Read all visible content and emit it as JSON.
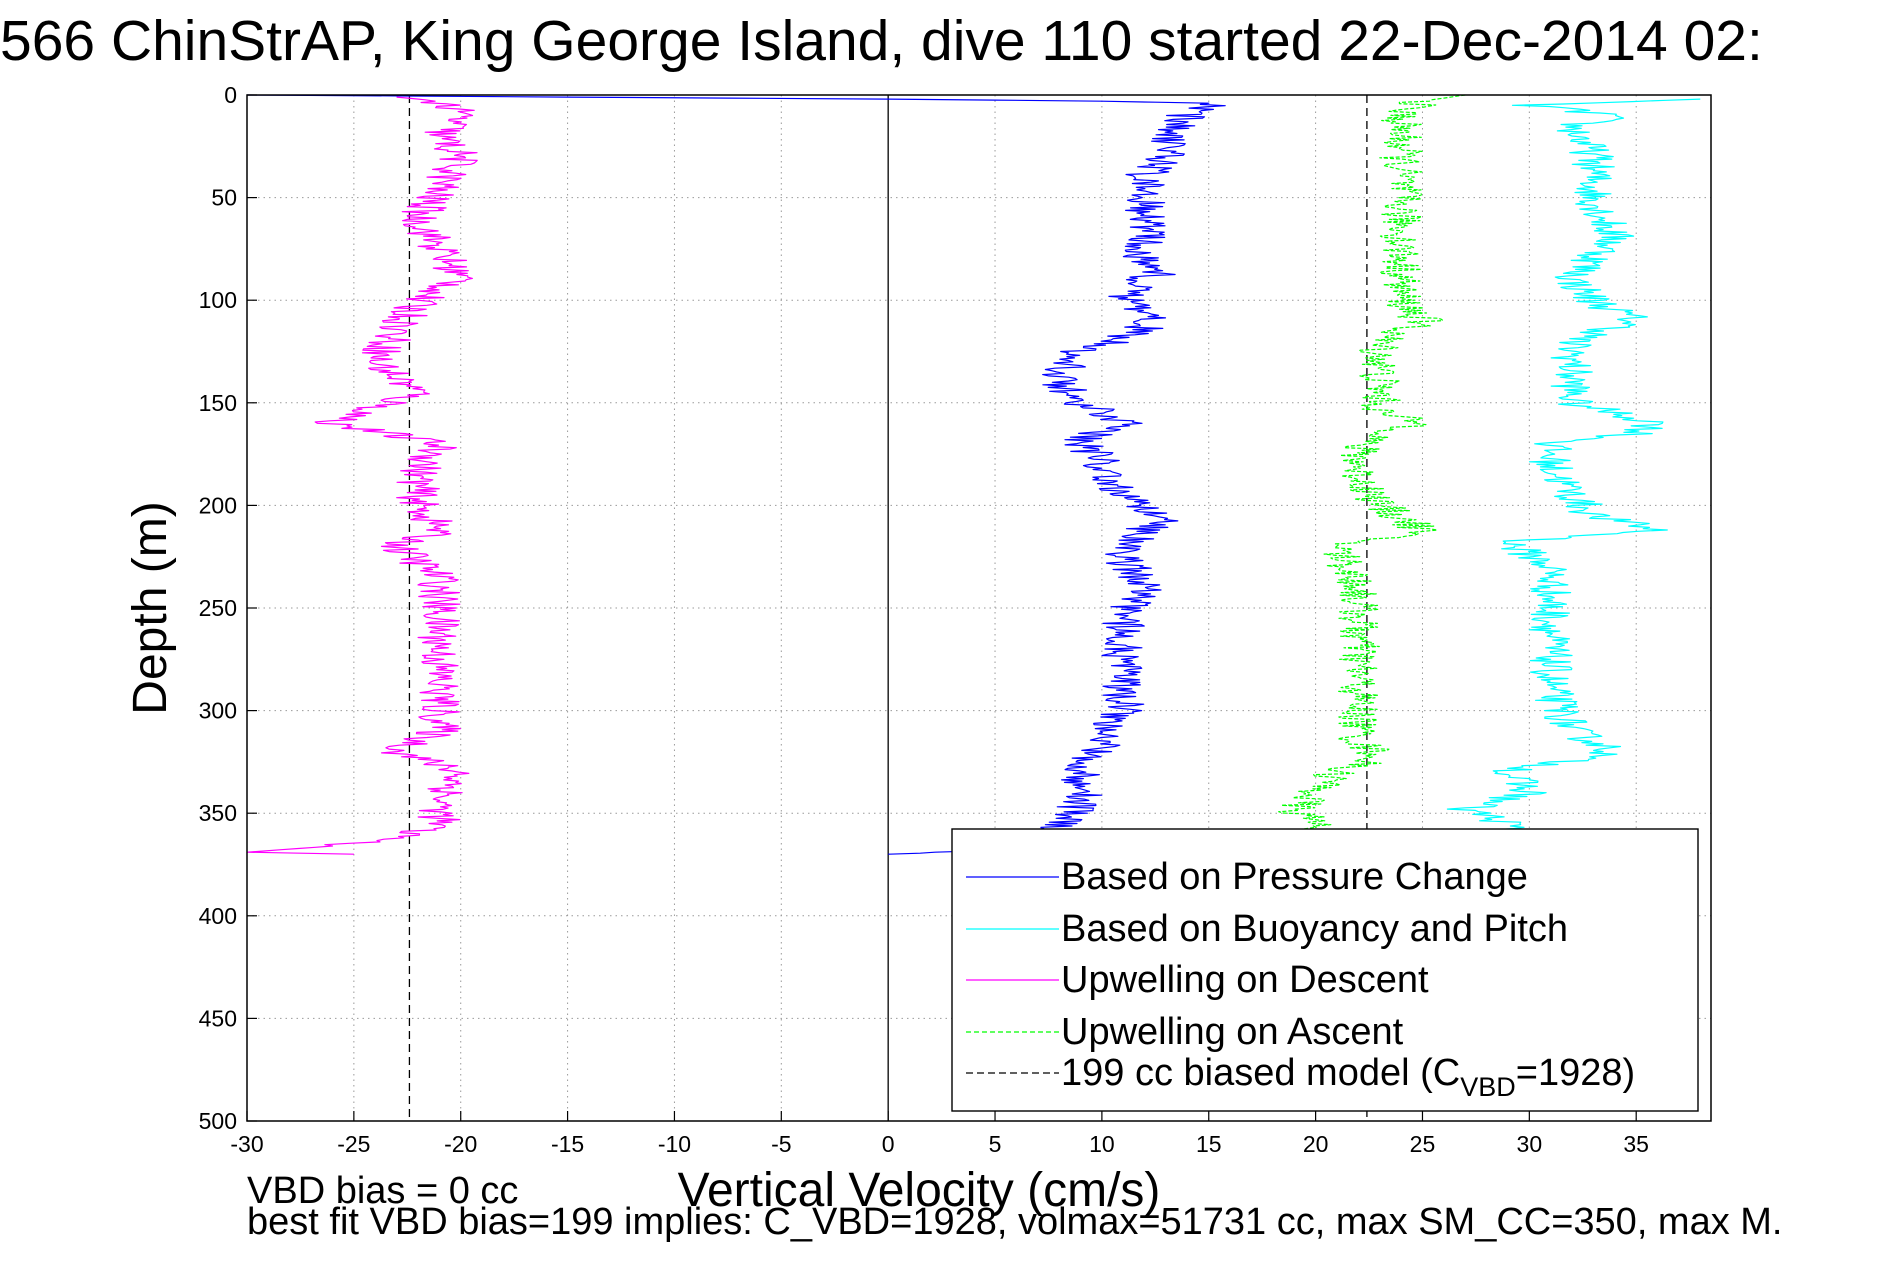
{
  "chart_data": {
    "type": "line",
    "title": "566 ChinStrAP, King George Island, dive 110 started 22-Dec-2014 02:",
    "xlabel": "Vertical Velocity (cm/s)",
    "ylabel": "Depth (m)",
    "xlim": [
      -30,
      38.5
    ],
    "ylim": [
      0,
      500
    ],
    "y_reversed": true,
    "x_ticks": [
      -30,
      -25,
      -20,
      -15,
      -10,
      -5,
      0,
      5,
      10,
      15,
      20,
      25,
      30,
      35
    ],
    "x_tick_labels": [
      "-30",
      "-25",
      "-20",
      "-15",
      "-10",
      "-5",
      "0",
      "5",
      "10",
      "15",
      "20",
      "25",
      "30",
      "35"
    ],
    "y_ticks": [
      0,
      50,
      100,
      150,
      200,
      250,
      300,
      350,
      400,
      450,
      500
    ],
    "y_tick_labels": [
      "0",
      "50",
      "100",
      "150",
      "200",
      "250",
      "300",
      "350",
      "400",
      "450",
      "500"
    ],
    "grid": true,
    "legend_position": "bottom-right",
    "reference_lines": [
      {
        "x": 0,
        "style": "solid",
        "color": "#000000"
      },
      {
        "x": -22.4,
        "style": "dashed",
        "color": "#000000"
      },
      {
        "x": 22.4,
        "style": "dashed",
        "color": "#000000"
      }
    ],
    "series": [
      {
        "name": "Based on Pressure Change",
        "color": "#0000ff",
        "dash": "solid",
        "depth": [
          370,
          369,
          365,
          355,
          345,
          330,
          315,
          300,
          285,
          270,
          255,
          240,
          225,
          212,
          205,
          195,
          180,
          168,
          160,
          150,
          140,
          135,
          125,
          115,
          108,
          100,
          90,
          85,
          80,
          70,
          60,
          50,
          40,
          30,
          20,
          10,
          4,
          3,
          2,
          1,
          0
        ],
        "velocity": [
          0,
          3,
          7,
          8,
          9,
          9,
          10,
          11,
          11,
          11,
          11,
          12,
          11,
          12,
          13,
          11,
          10,
          9,
          11,
          9,
          8,
          8,
          9,
          12,
          12,
          11,
          12,
          13,
          12,
          12,
          12,
          12,
          12,
          13,
          13,
          14,
          15,
          10,
          0,
          -15,
          -30
        ]
      },
      {
        "name": "Based on Buoyancy and Pitch",
        "color": "#00ffff",
        "dash": "solid",
        "depth": [
          2,
          5,
          10,
          15,
          30,
          50,
          70,
          90,
          100,
          110,
          120,
          140,
          150,
          160,
          165,
          170,
          180,
          195,
          205,
          212,
          218,
          230,
          250,
          270,
          290,
          310,
          320,
          330,
          340,
          348,
          355,
          360
        ],
        "velocity": [
          38,
          30,
          34,
          32,
          33,
          33,
          34,
          32,
          33,
          35,
          32,
          32,
          32,
          36,
          35,
          31,
          31,
          32,
          33,
          36,
          29,
          31,
          31,
          31,
          31,
          32,
          34,
          29,
          30,
          27,
          29,
          29
        ]
      },
      {
        "name": "Upwelling on Descent",
        "color": "#ff00ff",
        "dash": "solid",
        "depth": [
          1,
          3,
          10,
          20,
          30,
          45,
          60,
          75,
          90,
          100,
          115,
          130,
          145,
          160,
          170,
          185,
          200,
          212,
          220,
          235,
          250,
          270,
          290,
          310,
          320,
          330,
          345,
          355,
          362,
          366,
          369,
          370
        ],
        "velocity": [
          -23,
          -21,
          -20,
          -21,
          -20,
          -21,
          -22,
          -21,
          -20,
          -22,
          -23,
          -24,
          -22,
          -26,
          -21,
          -22,
          -22,
          -21,
          -23,
          -21,
          -21,
          -21,
          -21,
          -21,
          -23,
          -20,
          -21,
          -21,
          -23,
          -26,
          -30,
          -25
        ]
      },
      {
        "name": "Upwelling on Ascent",
        "color": "#00ff00",
        "dash": "dashed",
        "depth": [
          0,
          3,
          8,
          20,
          40,
          60,
          80,
          100,
          110,
          120,
          140,
          155,
          160,
          170,
          185,
          200,
          212,
          220,
          240,
          260,
          280,
          300,
          315,
          322,
          330,
          340,
          348,
          355,
          360
        ],
        "velocity": [
          27,
          25,
          24,
          24,
          24,
          24,
          24,
          24,
          25,
          23,
          23,
          23,
          25,
          22,
          22,
          23,
          25,
          21,
          22,
          22,
          22,
          22,
          22,
          23,
          21,
          20,
          19,
          20,
          20
        ]
      },
      {
        "name": "199 cc biased model (C_VBD=1928)",
        "color": "#000000",
        "dash": "dashed",
        "depth": [],
        "velocity": []
      }
    ],
    "legend": [
      {
        "label": "Based on Pressure Change",
        "color": "#0000ff",
        "dash": "solid"
      },
      {
        "label": "Based on Buoyancy and Pitch",
        "color": "#00ffff",
        "dash": "solid"
      },
      {
        "label": "Upwelling on Descent",
        "color": "#ff00ff",
        "dash": "solid"
      },
      {
        "label": "Upwelling on Ascent",
        "color": "#00ff00",
        "dash": "dashed"
      },
      {
        "label_main": "199 cc biased model (C",
        "label_sub": "VBD",
        "label_tail": "=1928)",
        "color": "#000000",
        "dash": "dashed"
      }
    ]
  },
  "footer": {
    "line1": "VBD bias = 0 cc",
    "line2": "best fit VBD bias=199 implies: C_VBD=1928, volmax=51731 cc, max SM_CC=350, max M."
  }
}
